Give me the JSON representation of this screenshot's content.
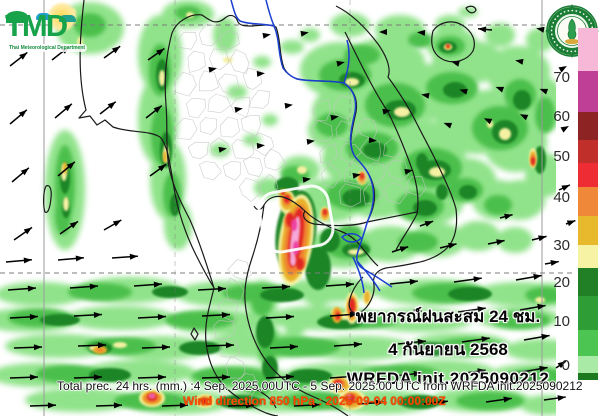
{
  "logo": {
    "acronym": "TMD",
    "department": "Thai Meteorological Department"
  },
  "seal": {
    "name": "thai-meteorological-department-seal"
  },
  "legend": {
    "values": [
      "70",
      "60",
      "50",
      "40",
      "30",
      "20",
      "10",
      "0"
    ],
    "colors": [
      "#f7b7d6",
      "#bf3f97",
      "#8e2323",
      "#c12f2b",
      "#ee2c33",
      "#f0883a",
      "#e9b92d",
      "#f6f3a4",
      "#217f26",
      "#2e9d35",
      "#4cc552",
      "#a8eaa6",
      "#1b7a20"
    ]
  },
  "annotation": {
    "title_thai": "พยากรณ์ฝนสะสม 24 ชม.",
    "date_thai": "4 กันยายน 2568",
    "model_init": "WRFDA  init.2025090212"
  },
  "footer": {
    "total_precip": "Total prec. 24 hrs. (mm.) :4 Sep. 2025,00UTC - 5 Sep. 2025:00 UTC from WRFDA init.2025090212",
    "wind_direction": "Wind direction 850 hPa : 2025-09-04 00:00:00Z"
  }
}
